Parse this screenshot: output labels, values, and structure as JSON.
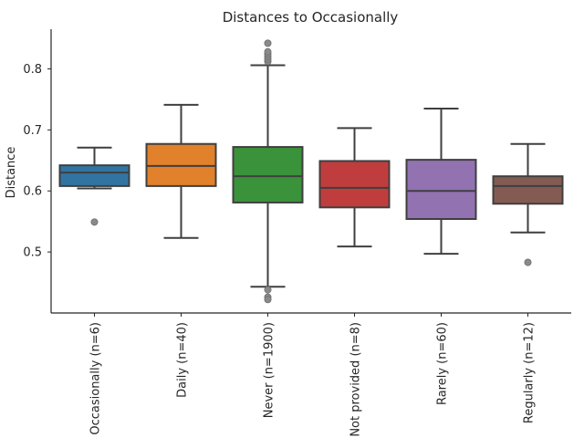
{
  "chart_data": {
    "type": "box",
    "title": "Distances to Occasionally",
    "xlabel": "",
    "ylabel": "Distance",
    "ylim": [
      0.4,
      0.865
    ],
    "yticks": [
      0.5,
      0.6,
      0.7,
      0.8
    ],
    "grid": false,
    "categories": [
      "Occasionally (n=6)",
      "Daily (n=40)",
      "Never (n=1900)",
      "Not provided (n=8)",
      "Rarely (n=60)",
      "Regularly (n=12)"
    ],
    "boxes": [
      {
        "whisker_low": 0.604,
        "q1": 0.608,
        "median": 0.63,
        "q3": 0.642,
        "whisker_high": 0.671,
        "outliers": [
          0.549
        ],
        "color": "#3274a1"
      },
      {
        "whisker_low": 0.523,
        "q1": 0.608,
        "median": 0.641,
        "q3": 0.677,
        "whisker_high": 0.741,
        "outliers": [],
        "color": "#e1812c"
      },
      {
        "whisker_low": 0.443,
        "q1": 0.581,
        "median": 0.624,
        "q3": 0.672,
        "whisker_high": 0.806,
        "outliers": [
          0.438,
          0.426,
          0.422,
          0.812,
          0.816,
          0.82,
          0.824,
          0.828,
          0.842
        ],
        "color": "#3a923a"
      },
      {
        "whisker_low": 0.509,
        "q1": 0.573,
        "median": 0.605,
        "q3": 0.649,
        "whisker_high": 0.703,
        "outliers": [],
        "color": "#c03d3e"
      },
      {
        "whisker_low": 0.497,
        "q1": 0.554,
        "median": 0.6,
        "q3": 0.651,
        "whisker_high": 0.735,
        "outliers": [],
        "color": "#9372b2"
      },
      {
        "whisker_low": 0.532,
        "q1": 0.579,
        "median": 0.608,
        "q3": 0.624,
        "whisker_high": 0.677,
        "outliers": [
          0.483
        ],
        "color": "#845b53"
      }
    ]
  }
}
